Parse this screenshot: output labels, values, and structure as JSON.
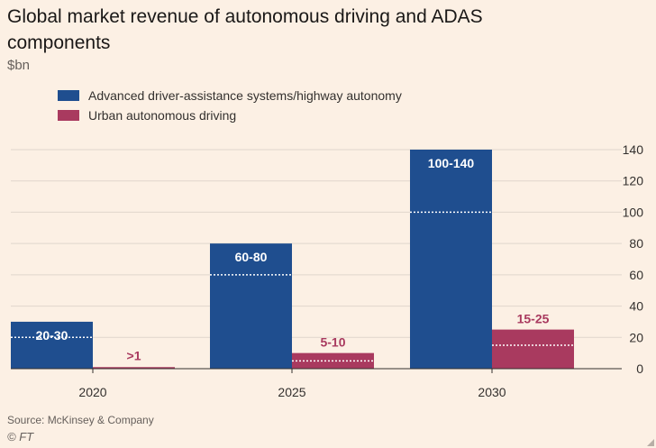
{
  "colors": {
    "background": "#fcf0e4",
    "adas": "#1f4e8f",
    "urban": "#a93a5f",
    "grid": "#e0d6cc"
  },
  "footer": {
    "source": "Source: McKinsey & Company",
    "copyright": "© FT"
  },
  "chart_data": {
    "type": "bar",
    "title": "Global market revenue of autonomous driving and ADAS components",
    "subtitle": "$bn",
    "categories": [
      "2020",
      "2025",
      "2030"
    ],
    "series": [
      {
        "name": "Advanced driver-assistance systems/highway autonomy",
        "values": [
          30,
          80,
          140
        ],
        "range_mid": [
          20,
          60,
          100
        ],
        "labels": [
          "20-30",
          "60-80",
          "100-140"
        ]
      },
      {
        "name": "Urban autonomous driving",
        "values": [
          1,
          10,
          25
        ],
        "range_mid": [
          null,
          5,
          15
        ],
        "labels": [
          ">1",
          "5-10",
          "15-25"
        ]
      }
    ],
    "ylim": [
      0,
      140
    ],
    "yticks": [
      0,
      20,
      40,
      60,
      80,
      100,
      120,
      140
    ],
    "grid": true,
    "y_axis_position": "right",
    "legend": "top-left"
  }
}
